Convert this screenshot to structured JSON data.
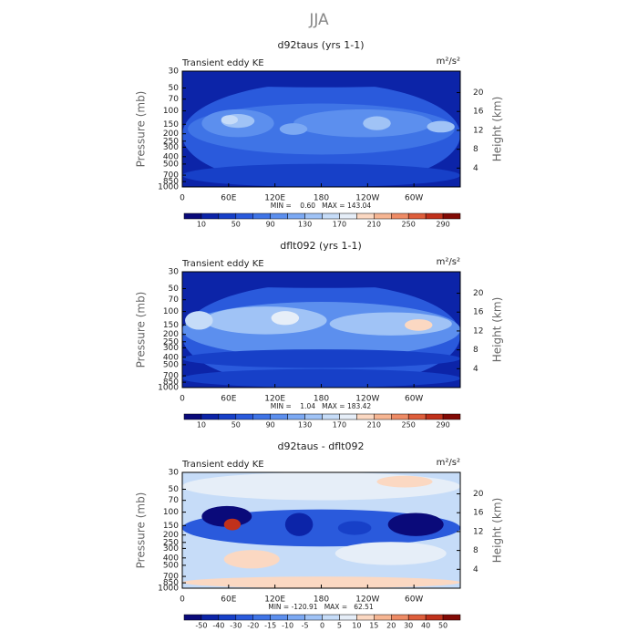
{
  "page_title": "JJA",
  "chart_data": [
    {
      "type": "contour",
      "title": "d92taus (yrs 1-1)",
      "subtitle": "Transient eddy KE",
      "units": "m²/s²",
      "ylabel": "Pressure (mb)",
      "y2label": "Height (km)",
      "ylog": true,
      "ylim": [
        1000,
        30
      ],
      "yticks": [
        30,
        50,
        70,
        100,
        150,
        200,
        250,
        300,
        400,
        500,
        700,
        850,
        1000
      ],
      "y2lim": [
        0,
        24.55
      ],
      "y2ticks": [
        4,
        8,
        12,
        16,
        20
      ],
      "xlim": [
        0,
        360
      ],
      "xticks": [
        0,
        {
          "value": 60,
          "label": "60E"
        },
        {
          "value": 120,
          "label": "120E"
        },
        180,
        {
          "value": 240,
          "label": "120W"
        },
        {
          "value": 300,
          "label": "60W"
        }
      ],
      "stats": "MIN =    0.60   MAX = 143.04",
      "colorbar": {
        "label_step": 2,
        "ticks": [
          10,
          50,
          90,
          130,
          170,
          210,
          250,
          290
        ],
        "colors": [
          "#0a0a7a",
          "#0c24a8",
          "#1740c8",
          "#2a5adc",
          "#3f74e6",
          "#5c8fee",
          "#7ca9f3",
          "#a0c3f6",
          "#c6dcf8",
          "#e6eef8",
          "#fbd8c2",
          "#f6b592",
          "#ee8b65",
          "#de5e3b",
          "#c0311b",
          "#820a05"
        ]
      }
    },
    {
      "type": "contour",
      "title": "dflt092 (yrs 1-1)",
      "subtitle": "Transient eddy KE",
      "units": "m²/s²",
      "ylabel": "Pressure (mb)",
      "y2label": "Height (km)",
      "ylog": true,
      "ylim": [
        1000,
        30
      ],
      "yticks": [
        30,
        50,
        70,
        100,
        150,
        200,
        250,
        300,
        400,
        500,
        700,
        850,
        1000
      ],
      "y2lim": [
        0,
        24.55
      ],
      "y2ticks": [
        4,
        8,
        12,
        16,
        20
      ],
      "xlim": [
        0,
        360
      ],
      "xticks": [
        0,
        {
          "value": 60,
          "label": "60E"
        },
        {
          "value": 120,
          "label": "120E"
        },
        180,
        {
          "value": 240,
          "label": "120W"
        },
        {
          "value": 300,
          "label": "60W"
        }
      ],
      "stats": "MIN =    1.04   MAX = 183.42",
      "colorbar": {
        "label_step": 2,
        "ticks": [
          10,
          50,
          90,
          130,
          170,
          210,
          250,
          290
        ],
        "colors": [
          "#0a0a7a",
          "#0c24a8",
          "#1740c8",
          "#2a5adc",
          "#3f74e6",
          "#5c8fee",
          "#7ca9f3",
          "#a0c3f6",
          "#c6dcf8",
          "#e6eef8",
          "#fbd8c2",
          "#f6b592",
          "#ee8b65",
          "#de5e3b",
          "#c0311b",
          "#820a05"
        ]
      }
    },
    {
      "type": "contour",
      "title": "d92taus - dflt092",
      "subtitle": "Transient eddy KE",
      "units": "m²/s²",
      "ylabel": "Pressure (mb)",
      "y2label": "Height (km)",
      "ylog": true,
      "ylim": [
        1000,
        30
      ],
      "yticks": [
        30,
        50,
        70,
        100,
        150,
        200,
        250,
        300,
        400,
        500,
        700,
        850,
        1000
      ],
      "y2lim": [
        0,
        24.55
      ],
      "y2ticks": [
        4,
        8,
        12,
        16,
        20
      ],
      "xlim": [
        0,
        360
      ],
      "xticks": [
        0,
        {
          "value": 60,
          "label": "60E"
        },
        {
          "value": 120,
          "label": "120E"
        },
        180,
        {
          "value": 240,
          "label": "120W"
        },
        {
          "value": 300,
          "label": "60W"
        }
      ],
      "stats": "MIN = -120.91   MAX =   62.51",
      "colorbar": {
        "label_step": 1,
        "ticks": [
          -50,
          -40,
          -30,
          -20,
          -15,
          -10,
          -5,
          0,
          5,
          10,
          15,
          20,
          30,
          40,
          50
        ],
        "colors": [
          "#0a0a7a",
          "#0c24a8",
          "#1740c8",
          "#2a5adc",
          "#3f74e6",
          "#5c8fee",
          "#7ca9f3",
          "#a0c3f6",
          "#c6dcf8",
          "#e6eef8",
          "#fbd8c2",
          "#f6b592",
          "#ee8b65",
          "#de5e3b",
          "#c0311b",
          "#820a05"
        ]
      }
    }
  ]
}
